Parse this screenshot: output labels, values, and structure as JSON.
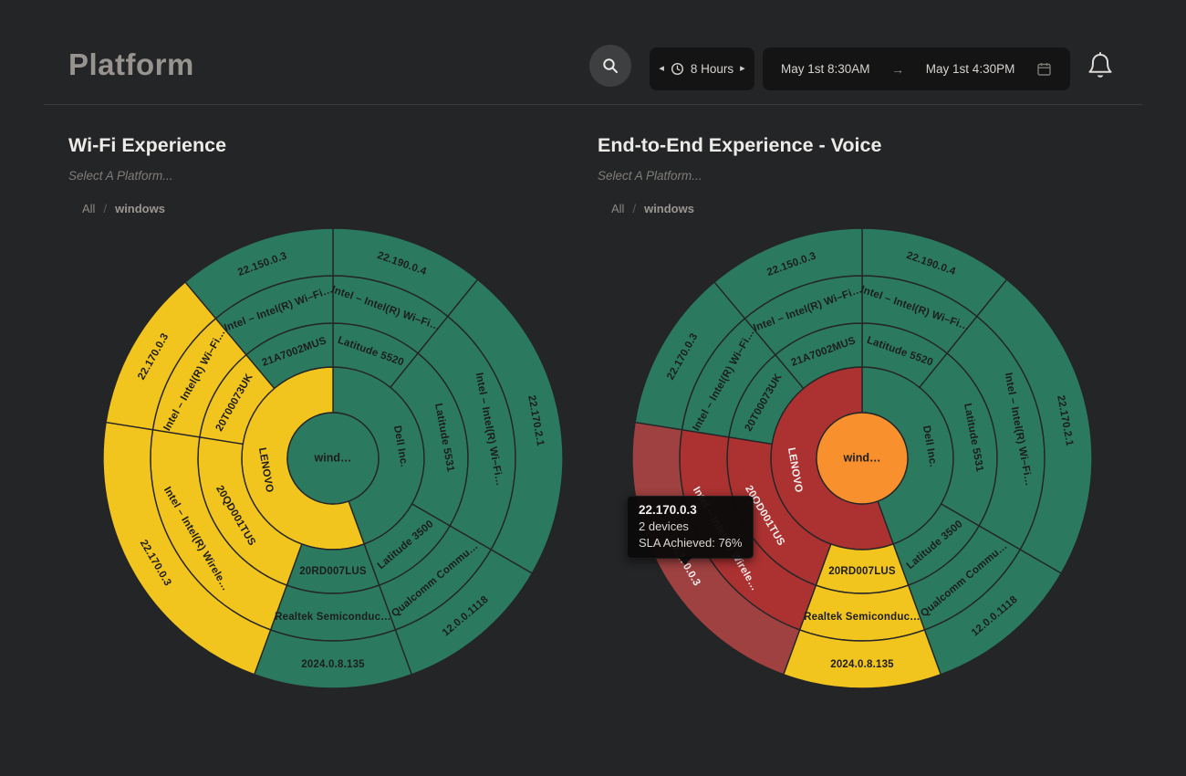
{
  "header": {
    "title": "Platform",
    "time_range": {
      "prev_icon": "◂",
      "label": "8 Hours",
      "next_icon": "▸"
    },
    "date_range": {
      "start": "May 1st 8:30AM",
      "arrow_icon": "→",
      "end": "May 1st 4:30PM"
    }
  },
  "breadcrumb_separator": "/",
  "colors": {
    "green": "#2b7a60",
    "yellow": "#f2c41e",
    "red": "#ab3231",
    "red_hover": "#9e4140",
    "orange": "#f8902e",
    "stroke": "#242527",
    "dark_text": "#1d1d1d",
    "light_text": "#f4eeee"
  },
  "tooltip": {
    "title": "22.170.0.3",
    "devices": "2 devices",
    "sla": "SLA Achieved: 76%"
  },
  "chart_data": [
    {
      "type": "sunburst",
      "title": "Wi-Fi Experience",
      "subtitle": "Select A Platform...",
      "breadcrumb": [
        "All",
        "windows"
      ],
      "radii": [
        50,
        100,
        148,
        200,
        252
      ],
      "center": {
        "label": "wind…",
        "color": "green",
        "text": "dark"
      },
      "segments": [
        {
          "ring": 1,
          "label": "Dell Inc.",
          "start": 0,
          "end": 160,
          "color": "green",
          "text": "dark"
        },
        {
          "ring": 1,
          "label": "LENOVO",
          "start": 160,
          "end": 360,
          "color": "yellow",
          "text": "dark"
        },
        {
          "ring": 2,
          "label": "Latitude 5520",
          "start": 0,
          "end": 39,
          "color": "green",
          "text": "dark"
        },
        {
          "ring": 2,
          "label": "Latitude 5531",
          "start": 39,
          "end": 120,
          "color": "green",
          "text": "dark"
        },
        {
          "ring": 2,
          "label": "Latitude 3500",
          "start": 120,
          "end": 160,
          "color": "green",
          "text": "dark"
        },
        {
          "ring": 2,
          "label": "20RD007LUS",
          "start": 160,
          "end": 200,
          "color": "green",
          "text": "dark"
        },
        {
          "ring": 2,
          "label": "20QD001TUS",
          "start": 200,
          "end": 279,
          "color": "yellow",
          "text": "dark"
        },
        {
          "ring": 2,
          "label": "20T00073UK",
          "start": 279,
          "end": 320,
          "color": "yellow",
          "text": "dark"
        },
        {
          "ring": 2,
          "label": "21A7002MUS",
          "start": 320,
          "end": 360,
          "color": "green",
          "text": "dark"
        },
        {
          "ring": 3,
          "label": "Intel – Intel(R) Wi–Fi…",
          "start": 0,
          "end": 39,
          "color": "green",
          "text": "dark"
        },
        {
          "ring": 3,
          "label": "Intel – Intel(R) Wi–Fi…",
          "start": 39,
          "end": 120,
          "color": "green",
          "text": "dark"
        },
        {
          "ring": 3,
          "label": "Qualcomm Commu…",
          "start": 120,
          "end": 160,
          "color": "green",
          "text": "dark"
        },
        {
          "ring": 3,
          "label": "Realtek Semiconduc…",
          "start": 160,
          "end": 200,
          "color": "green",
          "text": "dark"
        },
        {
          "ring": 3,
          "label": "Intel – Intel(R) Wirele…",
          "start": 200,
          "end": 279,
          "color": "yellow",
          "text": "dark"
        },
        {
          "ring": 3,
          "label": "Intel – Intel(R) Wi–Fi…",
          "start": 279,
          "end": 320,
          "color": "yellow",
          "text": "dark"
        },
        {
          "ring": 3,
          "label": "Intel – Intel(R) Wi–Fi…",
          "start": 320,
          "end": 360,
          "color": "green",
          "text": "dark"
        },
        {
          "ring": 4,
          "label": "22.190.0.4",
          "start": 0,
          "end": 39,
          "color": "green",
          "text": "dark"
        },
        {
          "ring": 4,
          "label": "22.170.2.1",
          "start": 39,
          "end": 120,
          "color": "green",
          "text": "dark"
        },
        {
          "ring": 4,
          "label": "12.0.0.1118",
          "start": 120,
          "end": 160,
          "color": "green",
          "text": "dark"
        },
        {
          "ring": 4,
          "label": "2024.0.8.135",
          "start": 160,
          "end": 200,
          "color": "green",
          "text": "dark"
        },
        {
          "ring": 4,
          "label": "22.170.0.3",
          "start": 200,
          "end": 279,
          "color": "yellow",
          "text": "dark"
        },
        {
          "ring": 4,
          "label": "22.170.0.3",
          "start": 279,
          "end": 320,
          "color": "yellow",
          "text": "dark"
        },
        {
          "ring": 4,
          "label": "22.150.0.3",
          "start": 320,
          "end": 360,
          "color": "green",
          "text": "dark"
        }
      ]
    },
    {
      "type": "sunburst",
      "title": "End-to-End Experience - Voice",
      "subtitle": "Select A Platform...",
      "breadcrumb": [
        "All",
        "windows"
      ],
      "radii": [
        50,
        100,
        148,
        200,
        252
      ],
      "center": {
        "label": "wind…",
        "color": "orange",
        "text": "dark"
      },
      "segments": [
        {
          "ring": 1,
          "label": "Dell Inc.",
          "start": 0,
          "end": 160,
          "color": "green",
          "text": "dark"
        },
        {
          "ring": 1,
          "label": "LENOVO",
          "start": 160,
          "end": 360,
          "color": "red",
          "text": "light"
        },
        {
          "ring": 2,
          "label": "Latitude 5520",
          "start": 0,
          "end": 39,
          "color": "green",
          "text": "dark"
        },
        {
          "ring": 2,
          "label": "Latitude 5531",
          "start": 39,
          "end": 120,
          "color": "green",
          "text": "dark"
        },
        {
          "ring": 2,
          "label": "Latitude 3500",
          "start": 120,
          "end": 160,
          "color": "green",
          "text": "dark"
        },
        {
          "ring": 2,
          "label": "20RD007LUS",
          "start": 160,
          "end": 200,
          "color": "yellow",
          "text": "dark"
        },
        {
          "ring": 2,
          "label": "20QD001TUS",
          "start": 200,
          "end": 279,
          "color": "red",
          "text": "light"
        },
        {
          "ring": 2,
          "label": "20T00073UK",
          "start": 279,
          "end": 320,
          "color": "green",
          "text": "dark"
        },
        {
          "ring": 2,
          "label": "21A7002MUS",
          "start": 320,
          "end": 360,
          "color": "green",
          "text": "dark"
        },
        {
          "ring": 3,
          "label": "Intel – Intel(R) Wi–Fi…",
          "start": 0,
          "end": 39,
          "color": "green",
          "text": "dark"
        },
        {
          "ring": 3,
          "label": "Intel – Intel(R) Wi–Fi…",
          "start": 39,
          "end": 120,
          "color": "green",
          "text": "dark"
        },
        {
          "ring": 3,
          "label": "Qualcomm Commu…",
          "start": 120,
          "end": 160,
          "color": "green",
          "text": "dark"
        },
        {
          "ring": 3,
          "label": "Realtek Semiconduc…",
          "start": 160,
          "end": 200,
          "color": "yellow",
          "text": "dark"
        },
        {
          "ring": 3,
          "label": "Intel – Intel(R) Wirele…",
          "start": 200,
          "end": 279,
          "color": "red",
          "text": "light"
        },
        {
          "ring": 3,
          "label": "Intel – Intel(R) Wi–Fi…",
          "start": 279,
          "end": 320,
          "color": "green",
          "text": "dark"
        },
        {
          "ring": 3,
          "label": "Intel – Intel(R) Wi–Fi…",
          "start": 320,
          "end": 360,
          "color": "green",
          "text": "dark"
        },
        {
          "ring": 4,
          "label": "22.190.0.4",
          "start": 0,
          "end": 39,
          "color": "green",
          "text": "dark"
        },
        {
          "ring": 4,
          "label": "22.170.2.1",
          "start": 39,
          "end": 120,
          "color": "green",
          "text": "dark"
        },
        {
          "ring": 4,
          "label": "12.0.0.1118",
          "start": 120,
          "end": 160,
          "color": "green",
          "text": "dark"
        },
        {
          "ring": 4,
          "label": "2024.0.8.135",
          "start": 160,
          "end": 200,
          "color": "yellow",
          "text": "dark"
        },
        {
          "ring": 4,
          "label": "22.170.0.3",
          "start": 200,
          "end": 279,
          "color": "red_hover",
          "text": "light"
        },
        {
          "ring": 4,
          "label": "22.170.0.3",
          "start": 279,
          "end": 320,
          "color": "green",
          "text": "dark"
        },
        {
          "ring": 4,
          "label": "22.150.0.3",
          "start": 320,
          "end": 360,
          "color": "green",
          "text": "dark"
        }
      ]
    }
  ]
}
